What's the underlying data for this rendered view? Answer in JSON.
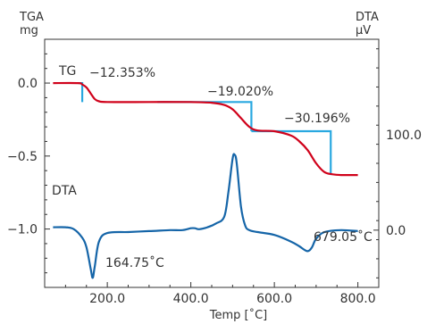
{
  "chart_data": {
    "type": "line",
    "x_axis": {
      "label": "Temp [˚C]",
      "range": [
        50,
        850
      ],
      "ticks": [
        200,
        400,
        600,
        800
      ],
      "tick_labels": [
        "200.0",
        "400.0",
        "600.0",
        "800.0"
      ]
    },
    "y_left": {
      "label_line1": "TGA",
      "label_line2": "mg",
      "range": [
        -1.4,
        0.3
      ],
      "ticks": [
        0.0,
        -0.5,
        -1.0
      ],
      "tick_labels": [
        "0.0",
        "−0.5",
        "−1.0"
      ]
    },
    "y_right": {
      "label_line1": "DTA",
      "label_line2": "µV",
      "range": [
        -60,
        200
      ],
      "ticks": [
        0,
        100
      ],
      "tick_labels": [
        "0.0",
        "100.0"
      ]
    },
    "series": [
      {
        "name": "TG",
        "color": "#d0021b",
        "axis": "left",
        "x": [
          70,
          130,
          140,
          150,
          160,
          170,
          180,
          200,
          300,
          400,
          450,
          480,
          500,
          520,
          540,
          560,
          600,
          640,
          660,
          680,
          700,
          720,
          740,
          760,
          800
        ],
        "y": [
          0.0,
          0.0,
          -0.01,
          -0.03,
          -0.07,
          -0.11,
          -0.125,
          -0.13,
          -0.13,
          -0.13,
          -0.135,
          -0.15,
          -0.18,
          -0.24,
          -0.3,
          -0.325,
          -0.33,
          -0.36,
          -0.4,
          -0.46,
          -0.55,
          -0.61,
          -0.625,
          -0.63,
          -0.63
        ]
      },
      {
        "name": "DTA",
        "color": "#1565a8",
        "axis": "right",
        "x": [
          70,
          100,
          120,
          140,
          150,
          160,
          165,
          170,
          180,
          200,
          250,
          300,
          350,
          380,
          400,
          410,
          420,
          440,
          460,
          480,
          490,
          500,
          505,
          510,
          520,
          530,
          540,
          560,
          600,
          640,
          660,
          679,
          690,
          700,
          720,
          760,
          800
        ],
        "y": [
          3,
          3,
          1,
          -8,
          -18,
          -40,
          -50,
          -38,
          -12,
          -3,
          -2,
          -1,
          0,
          0,
          2,
          2,
          1,
          3,
          7,
          14,
          40,
          75,
          79,
          70,
          25,
          5,
          0,
          -2,
          -5,
          -12,
          -17,
          -22,
          -18,
          -9,
          -2,
          0,
          -1
        ]
      }
    ],
    "step_marks": [
      {
        "x_start": 130,
        "x_end": 140,
        "y_from": 0.0,
        "y_to": -0.13,
        "label": "−12.353%"
      },
      {
        "x_start": 320,
        "x_end": 545,
        "y_from": -0.13,
        "y_to": -0.33,
        "label": "−19.020%"
      },
      {
        "x_start": 545,
        "x_end": 735,
        "y_from": -0.33,
        "y_to": -0.63,
        "label": "−30.196%"
      }
    ],
    "step_color": "#29a8e0",
    "series_labels": {
      "tg": "TG",
      "dta": "DTA"
    },
    "peak_labels": [
      {
        "text": "164.75˚C",
        "x": 164.75,
        "y": -50
      },
      {
        "text": "679.05˚C",
        "x": 679.05,
        "y": -22
      }
    ],
    "grid": false
  }
}
